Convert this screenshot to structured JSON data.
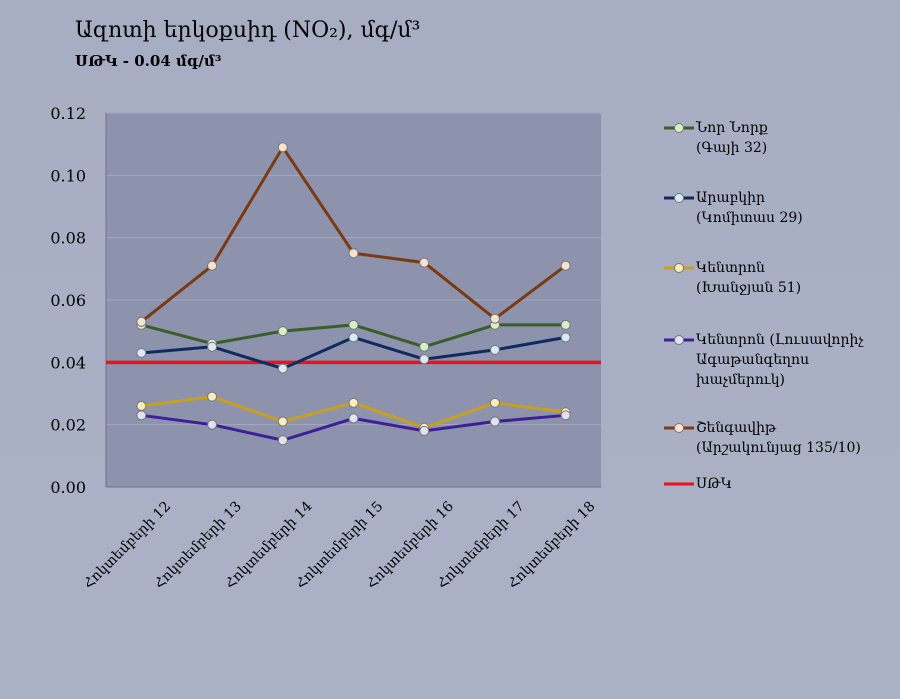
{
  "chart_data": {
    "type": "line",
    "title": "Ազոտի  երկօքսիդ (NO₂), մգ/մ³",
    "subtitle": "ՍԹԿ - 0.04 մգ/մ³",
    "xlabel": "",
    "ylabel": "",
    "ylim": [
      0,
      0.12
    ],
    "yticks": [
      "0.00",
      "0.02",
      "0.04",
      "0.06",
      "0.08",
      "0.10",
      "0.12"
    ],
    "grid": true,
    "legend_position": "right",
    "categories": [
      "Հոկտեմբերի 12",
      "Հոկտեմբերի 13",
      "Հոկտեմբերի 14",
      "Հոկտեմբերի 15",
      "Հոկտեմբերի 16",
      "Հոկտեմբերի 17",
      "Հոկտեմբերի 18"
    ],
    "series": [
      {
        "name": "Նոր Նորք (Գայի 32)",
        "lines": [
          "Նոր Նորք",
          "(Գայի 32)"
        ],
        "color": "#3a5e2a",
        "marker": "#d8f0c8",
        "values": [
          0.052,
          0.046,
          0.05,
          0.052,
          0.045,
          0.052,
          0.052
        ]
      },
      {
        "name": "Արաբկիր (Կոմիտաս 29)",
        "lines": [
          "Արաբկիր",
          "(Կոմիտաս 29)"
        ],
        "color": "#0f2a5e",
        "marker": "#dde8f5",
        "values": [
          0.043,
          0.045,
          0.038,
          0.048,
          0.041,
          0.044,
          0.048
        ]
      },
      {
        "name": "Կենտրոն (Խանջյան 51)",
        "lines": [
          "Կենտրոն",
          "(Խանջյան 51)"
        ],
        "color": "#c8a020",
        "marker": "#f8eebb",
        "values": [
          0.026,
          0.029,
          0.021,
          0.027,
          0.019,
          0.027,
          0.024
        ]
      },
      {
        "name": "Կենտրոն (Լուսավորիչ Ագաթանգեղոս խաչմերուկ)",
        "lines": [
          "Կենտրոն (Լուսավորիչ",
          "Ագաթանգեղոս",
          "խաչմերուկ)"
        ],
        "color": "#3f1e9a",
        "marker": "#e4e0f4",
        "values": [
          0.023,
          0.02,
          0.015,
          0.022,
          0.018,
          0.021,
          0.023
        ]
      },
      {
        "name": "Շենգավիթ (Արշակունյաց 135/10)",
        "lines": [
          "Շենգավիթ",
          "(Արշակունյաց 135/10)"
        ],
        "color": "#7a3a12",
        "marker": "#fbe2cc",
        "values": [
          0.053,
          0.071,
          0.109,
          0.075,
          0.072,
          0.054,
          0.071
        ]
      }
    ],
    "reference_line": {
      "name": "ՍԹԿ",
      "value": 0.04,
      "color": "#e8141b"
    }
  }
}
